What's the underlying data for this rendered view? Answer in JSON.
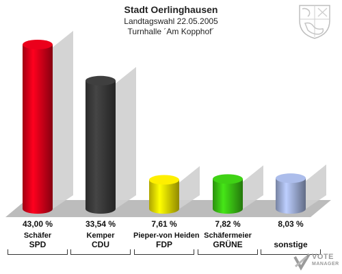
{
  "header": {
    "title": "Stadt Oerlinghausen",
    "subtitle": "Landtagswahl 22.05.2005",
    "location": "Turnhalle ´Am Kopphof´"
  },
  "branding": {
    "top": "VOTE",
    "bottom": "MANAGER"
  },
  "icons": {
    "crest": "coat-of-arms-icon",
    "brand": "vote-manager-logo"
  },
  "chart_data": {
    "type": "bar",
    "ylim": [
      0,
      43.0
    ],
    "grid": false,
    "legend": "none",
    "bars": [
      {
        "candidate": "Schäfer",
        "party": "SPD",
        "value": 43.0,
        "label": "43,00 %",
        "color": "#e0001a"
      },
      {
        "candidate": "Kemper",
        "party": "CDU",
        "value": 33.54,
        "label": "33,54 %",
        "color": "#3c3c3c"
      },
      {
        "candidate": "Pieper-von Heiden",
        "party": "FDP",
        "value": 7.61,
        "label": "7,61 %",
        "color": "#f2e400"
      },
      {
        "candidate": "Schäfermeier",
        "party": "GRÜNE",
        "value": 7.82,
        "label": "7,82 %",
        "color": "#3cc814"
      },
      {
        "candidate": "",
        "party": "sonstige",
        "value": 8.03,
        "label": "8,03 %",
        "color": "#a4b4e0"
      }
    ]
  }
}
